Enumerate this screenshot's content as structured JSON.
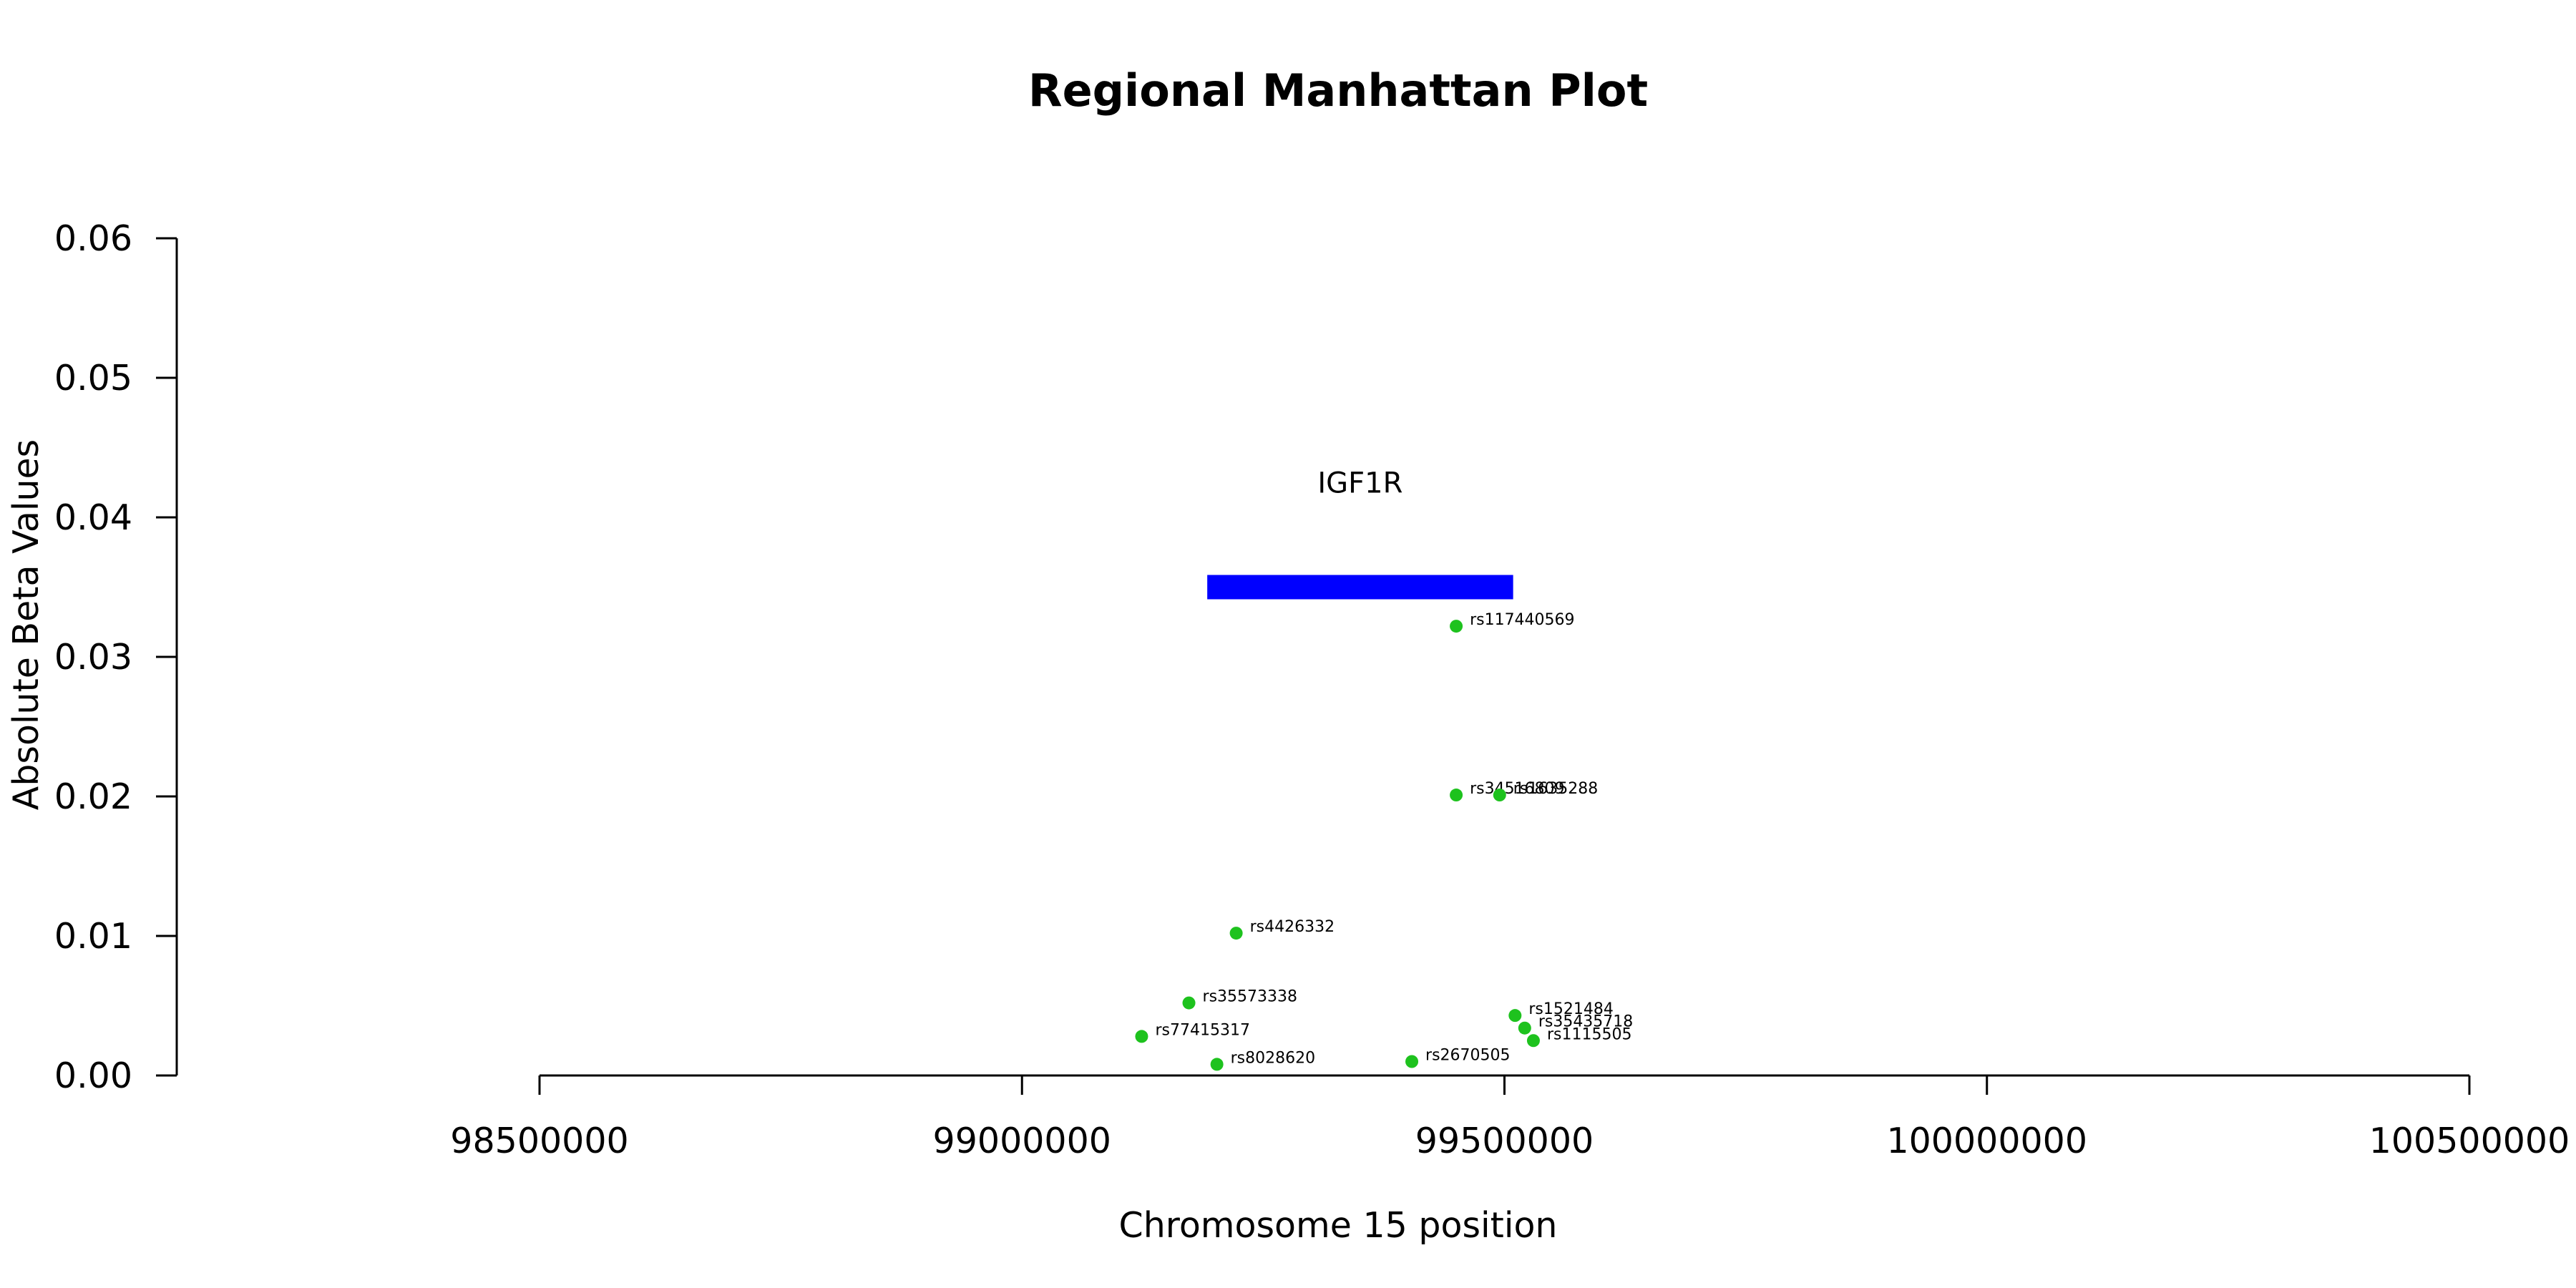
{
  "chart_data": {
    "type": "scatter",
    "title": "Regional Manhattan Plot",
    "xlabel": "Chromosome 15 position",
    "ylabel": "Absolute Beta Values",
    "xlim": [
      98500000,
      100500000
    ],
    "ylim": [
      0,
      0.06
    ],
    "x_ticks": [
      98500000,
      99000000,
      99500000,
      100000000,
      100500000
    ],
    "x_tick_labels": [
      "98500000",
      "99000000",
      "99500000",
      "100000000",
      "100500000"
    ],
    "y_ticks": [
      0,
      0.01,
      0.02,
      0.03,
      0.04,
      0.05,
      0.06
    ],
    "y_tick_labels": [
      "0.00",
      "0.01",
      "0.02",
      "0.03",
      "0.04",
      "0.05",
      "0.06"
    ],
    "grid": false,
    "point_color": "#1ec21e",
    "gene": {
      "name": "IGF1R",
      "start": 99192000,
      "end": 99509000,
      "y": 0.035,
      "color": "#0000ff"
    },
    "points": [
      {
        "label": "rs117440569",
        "x": 99450000,
        "y": 0.0322
      },
      {
        "label": "rs34516809",
        "x": 99450000,
        "y": 0.0201
      },
      {
        "label": "rs1635288",
        "x": 99495000,
        "y": 0.0201
      },
      {
        "label": "rs4426332",
        "x": 99222000,
        "y": 0.0102
      },
      {
        "label": "rs35573338",
        "x": 99173000,
        "y": 0.0052
      },
      {
        "label": "rs77415317",
        "x": 99124000,
        "y": 0.0028
      },
      {
        "label": "rs8028620",
        "x": 99202000,
        "y": 0.0008
      },
      {
        "label": "rs2670505",
        "x": 99404000,
        "y": 0.001
      },
      {
        "label": "rs1521484",
        "x": 99511000,
        "y": 0.0043
      },
      {
        "label": "rs35435718",
        "x": 99521000,
        "y": 0.0034
      },
      {
        "label": "rs1115505",
        "x": 99530000,
        "y": 0.0025
      }
    ]
  }
}
